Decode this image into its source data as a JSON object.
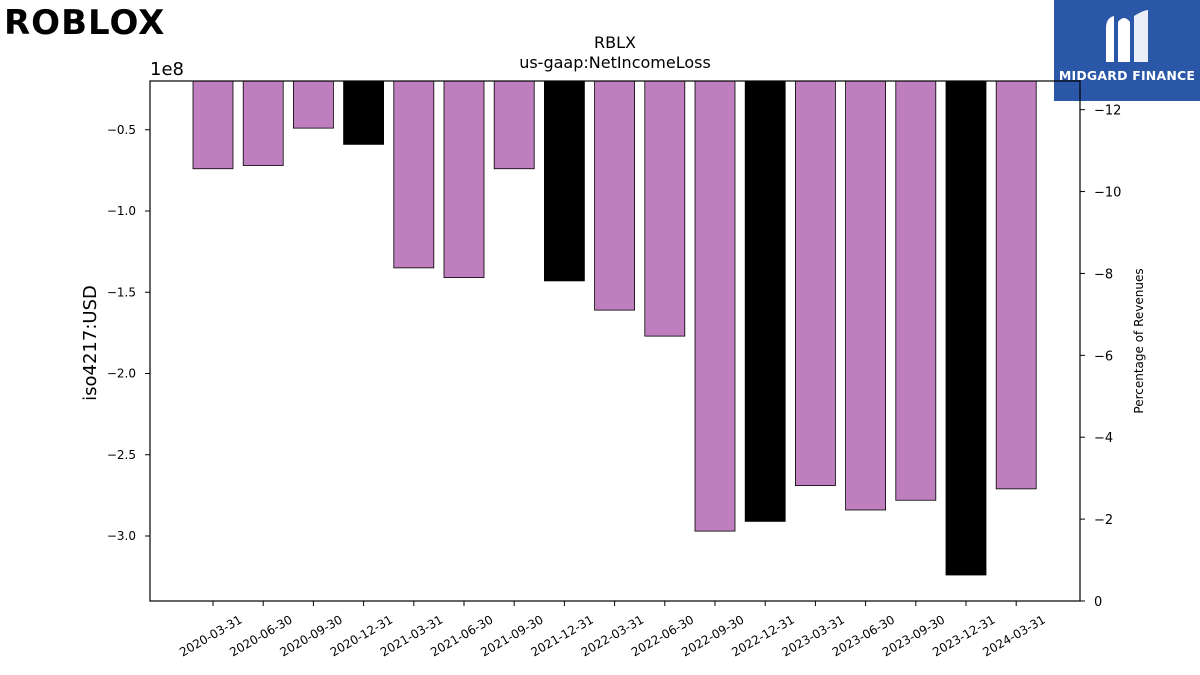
{
  "brand": {
    "left_logo": "ROBLOX",
    "right_logo": "MIDGARD FINANCE"
  },
  "chart_data": {
    "type": "bar",
    "title": "RBLX",
    "subtitle": "us-gaap:NetIncomeLoss",
    "ylabel": "iso4217:USD",
    "y_offset_label": "1e8",
    "y2label": "Percentage of Revenues",
    "categories": [
      "2020-03-31",
      "2020-06-30",
      "2020-09-30",
      "2020-12-31",
      "2021-03-31",
      "2021-06-30",
      "2021-09-30",
      "2021-12-31",
      "2022-03-31",
      "2022-06-30",
      "2022-09-30",
      "2022-12-31",
      "2023-03-31",
      "2023-06-30",
      "2023-09-30",
      "2023-12-31",
      "2024-03-31"
    ],
    "values": [
      -74000000,
      -72000000,
      -49000000,
      -59000000,
      -135000000,
      -141000000,
      -74000000,
      -143000000,
      -161000000,
      -177000000,
      -297000000,
      -291000000,
      -269000000,
      -284000000,
      -278000000,
      -324000000,
      -271000000
    ],
    "bar_colors": [
      "#bf7fbf",
      "#bf7fbf",
      "#bf7fbf",
      "#000000",
      "#bf7fbf",
      "#bf7fbf",
      "#bf7fbf",
      "#000000",
      "#bf7fbf",
      "#bf7fbf",
      "#bf7fbf",
      "#000000",
      "#bf7fbf",
      "#bf7fbf",
      "#bf7fbf",
      "#000000",
      "#bf7fbf"
    ],
    "ylim": [
      -340000000,
      -20000000
    ],
    "yticks": [
      -50000000,
      -100000000,
      -150000000,
      -200000000,
      -250000000,
      -300000000
    ],
    "ytick_labels": [
      "−0.5",
      "−1.0",
      "−1.5",
      "−2.0",
      "−2.5",
      "−3.0"
    ],
    "y2lim": [
      0,
      -12.7
    ],
    "y2ticks": [
      0,
      -2,
      -4,
      -6,
      -8,
      -10,
      -12
    ],
    "y2tick_labels": [
      "0",
      "−2",
      "−4",
      "−6",
      "−8",
      "−10",
      "−12"
    ],
    "grid": false,
    "legend": "none"
  }
}
